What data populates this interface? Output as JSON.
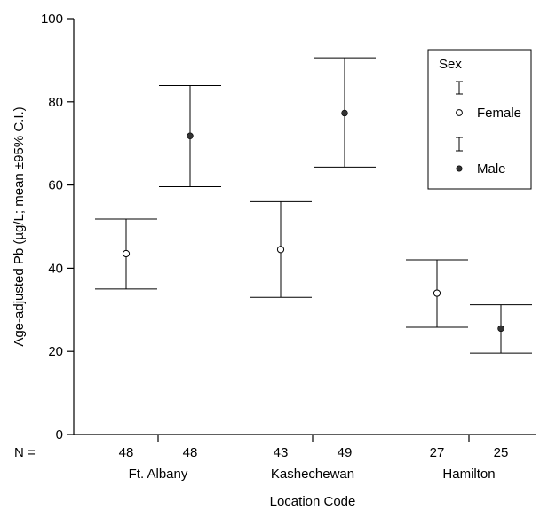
{
  "chart_data": {
    "type": "errorbar",
    "ylabel": "Age-adjusted Pb (µg/L; mean ±95% C.I.)",
    "xlabel": "Location Code",
    "ylim": [
      0,
      100
    ],
    "yticks": [
      0,
      20,
      40,
      60,
      80,
      100
    ],
    "n_prefix": "N =",
    "categories": [
      "Ft. Albany",
      "Kashechewan",
      "Hamilton"
    ],
    "legend": {
      "title": "Sex",
      "placement": "top-right",
      "entries": [
        "Female",
        "Male"
      ]
    },
    "series": [
      {
        "name": "Female",
        "marker": "open-circle",
        "points": [
          {
            "category": "Ft. Albany",
            "mean": 43.5,
            "lower": 35.0,
            "upper": 51.8,
            "n": "48"
          },
          {
            "category": "Kashechewan",
            "mean": 44.5,
            "lower": 33.0,
            "upper": 56.0,
            "n": "43"
          },
          {
            "category": "Hamilton",
            "mean": 34.0,
            "lower": 25.8,
            "upper": 42.0,
            "n": "27"
          }
        ]
      },
      {
        "name": "Male",
        "marker": "filled-circle",
        "points": [
          {
            "category": "Ft. Albany",
            "mean": 71.8,
            "lower": 59.6,
            "upper": 83.9,
            "n": "48"
          },
          {
            "category": "Kashechewan",
            "mean": 77.3,
            "lower": 64.3,
            "upper": 90.6,
            "n": "49"
          },
          {
            "category": "Hamilton",
            "mean": 25.5,
            "lower": 19.6,
            "upper": 31.2,
            "n": "25"
          }
        ]
      }
    ]
  }
}
